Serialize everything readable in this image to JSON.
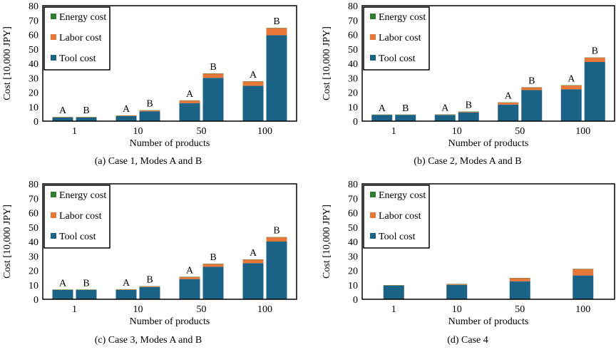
{
  "colors": {
    "energy": "#2f7d32",
    "labor": "#e8773a",
    "tool": "#1a6386",
    "frame": "#000000",
    "axis": "#808080"
  },
  "chart_data": [
    {
      "type": "bar",
      "stacked": true,
      "caption": "(a) Case 1, Modes A and B",
      "xlabel": "Number of products",
      "ylabel": "Cost [10,000 JPY]",
      "ylim": [
        0,
        80
      ],
      "yticks": [
        "0",
        "10",
        "20",
        "30",
        "40",
        "50",
        "60",
        "70",
        "80"
      ],
      "categories": [
        "1",
        "10",
        "50",
        "100"
      ],
      "modes": [
        "A",
        "B"
      ],
      "legend": [
        "Energy cost",
        "Labor cost",
        "Tool cost"
      ],
      "series": [
        {
          "name": "Tool cost",
          "values": [
            [
              2.5,
              2.5
            ],
            [
              3.5,
              6.8
            ],
            [
              12.5,
              30
            ],
            [
              24.5,
              59.5
            ]
          ]
        },
        {
          "name": "Labor cost",
          "values": [
            [
              0.3,
              0.3
            ],
            [
              0.4,
              0.7
            ],
            [
              1.8,
              3.0
            ],
            [
              3.0,
              5.0
            ]
          ]
        },
        {
          "name": "Energy cost",
          "values": [
            [
              0.05,
              0.05
            ],
            [
              0.05,
              0.05
            ],
            [
              0.1,
              0.1
            ],
            [
              0.1,
              0.1
            ]
          ]
        }
      ]
    },
    {
      "type": "bar",
      "stacked": true,
      "caption": "(b) Case 2, Modes A and B",
      "xlabel": "Number of products",
      "ylabel": "Cost [10,000 JPY]",
      "ylim": [
        0,
        80
      ],
      "yticks": [
        "0",
        "10",
        "20",
        "30",
        "40",
        "50",
        "60",
        "70",
        "80"
      ],
      "categories": [
        "1",
        "10",
        "50",
        "100"
      ],
      "modes": [
        "A",
        "B"
      ],
      "legend": [
        "Energy cost",
        "Labor cost",
        "Tool cost"
      ],
      "series": [
        {
          "name": "Tool cost",
          "values": [
            [
              4.3,
              4.3
            ],
            [
              4.3,
              6.1
            ],
            [
              11.5,
              21.5
            ],
            [
              22,
              41
            ]
          ]
        },
        {
          "name": "Labor cost",
          "values": [
            [
              0.2,
              0.2
            ],
            [
              0.3,
              0.5
            ],
            [
              1.4,
              1.9
            ],
            [
              2.8,
              3.0
            ]
          ]
        },
        {
          "name": "Energy cost",
          "values": [
            [
              0.05,
              0.05
            ],
            [
              0.05,
              0.05
            ],
            [
              0.1,
              0.1
            ],
            [
              0.1,
              0.1
            ]
          ]
        }
      ]
    },
    {
      "type": "bar",
      "stacked": true,
      "caption": "(c) Case 3, Modes A and B",
      "xlabel": "Number of products",
      "ylabel": "Cost [10,000 JPY]",
      "ylim": [
        0,
        80
      ],
      "yticks": [
        "0",
        "10",
        "20",
        "30",
        "40",
        "50",
        "60",
        "70",
        "80"
      ],
      "categories": [
        "1",
        "10",
        "50",
        "100"
      ],
      "modes": [
        "A",
        "B"
      ],
      "legend": [
        "Energy cost",
        "Labor cost",
        "Tool cost"
      ],
      "series": [
        {
          "name": "Tool cost",
          "values": [
            [
              6.5,
              6.5
            ],
            [
              6.5,
              8.5
            ],
            [
              14,
              22.5
            ],
            [
              25,
              40
            ]
          ]
        },
        {
          "name": "Labor cost",
          "values": [
            [
              0.2,
              0.2
            ],
            [
              0.4,
              0.5
            ],
            [
              1.5,
              2.0
            ],
            [
              2.5,
              3.0
            ]
          ]
        },
        {
          "name": "Energy cost",
          "values": [
            [
              0.05,
              0.05
            ],
            [
              0.05,
              0.05
            ],
            [
              0.1,
              0.1
            ],
            [
              0.1,
              0.1
            ]
          ]
        }
      ]
    },
    {
      "type": "bar",
      "stacked": true,
      "caption": "(d) Case 4",
      "xlabel": "Number of products",
      "ylabel": "Cost [10,000 JPY]",
      "ylim": [
        0,
        80
      ],
      "yticks": [
        "0",
        "10",
        "20",
        "30",
        "40",
        "50",
        "60",
        "70",
        "80"
      ],
      "categories": [
        "1",
        "10",
        "50",
        "100"
      ],
      "modes": [],
      "legend": [
        "Energy cost",
        "Labor cost",
        "Tool cost"
      ],
      "series": [
        {
          "name": "Tool cost",
          "values": [
            [
              9.5
            ],
            [
              10
            ],
            [
              12.5
            ],
            [
              16.5
            ]
          ]
        },
        {
          "name": "Labor cost",
          "values": [
            [
              0.3
            ],
            [
              0.6
            ],
            [
              2.2
            ],
            [
              4.5
            ]
          ]
        },
        {
          "name": "Energy cost",
          "values": [
            [
              0.05
            ],
            [
              0.05
            ],
            [
              0.1
            ],
            [
              0.1
            ]
          ]
        }
      ]
    }
  ]
}
